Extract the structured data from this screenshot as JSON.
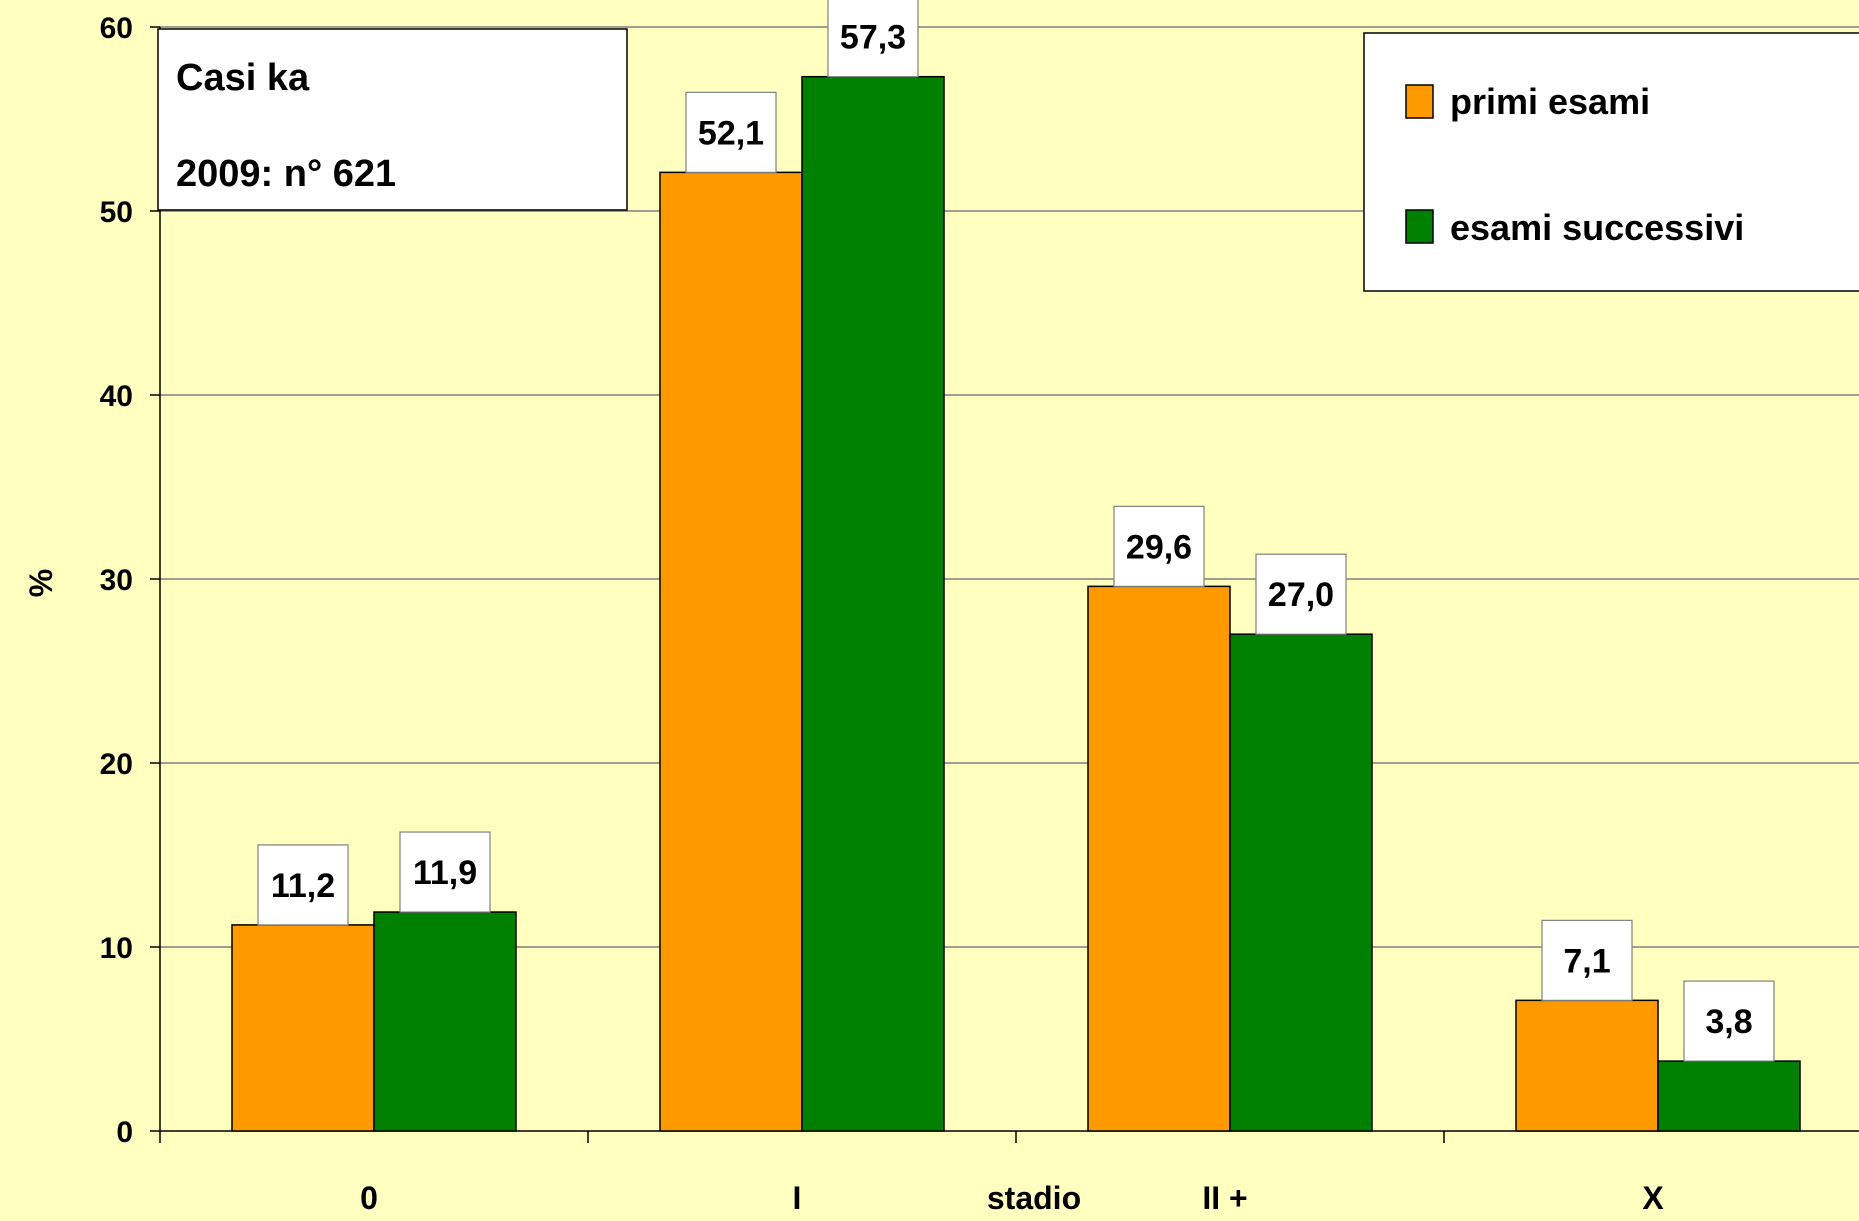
{
  "chart_data": {
    "type": "bar",
    "categories": [
      "0",
      "I",
      "II +",
      "X"
    ],
    "series": [
      {
        "name": "primi esami",
        "values": [
          11.2,
          52.1,
          29.6,
          7.1
        ],
        "labels": [
          "11,2",
          "52,1",
          "29,6",
          "7,1"
        ],
        "color": "#ff9900"
      },
      {
        "name": "esami successivi",
        "values": [
          11.9,
          57.3,
          27.0,
          3.8
        ],
        "labels": [
          "11,9",
          "57,3",
          "27,0",
          "3,8"
        ],
        "color": "#008000"
      }
    ],
    "xlabel": "stadio",
    "ylabel": "%",
    "ylim": [
      0,
      60
    ],
    "yticks": [
      "0",
      "10",
      "20",
      "30",
      "40",
      "50",
      "60"
    ],
    "grid": true,
    "legend_position": "top-right",
    "colors": {
      "background": "#ffffc0",
      "grid": "#808080"
    }
  },
  "annotation": {
    "line1": "Casi ka",
    "line2": "2009: n° 621"
  }
}
